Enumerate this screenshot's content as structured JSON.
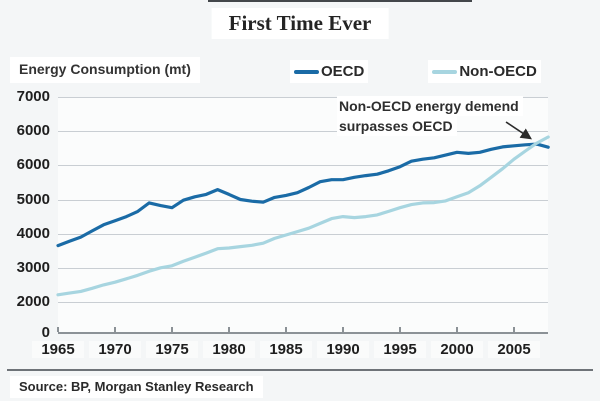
{
  "source": "Source: BP, Morgan Stanley Research",
  "chart_data": {
    "type": "line",
    "title": "First Time Ever",
    "ylabel": "Energy Consumption (mt)",
    "x": [
      1965,
      1966,
      1967,
      1968,
      1969,
      1970,
      1971,
      1972,
      1973,
      1974,
      1975,
      1976,
      1977,
      1978,
      1979,
      1980,
      1981,
      1982,
      1983,
      1984,
      1985,
      1986,
      1987,
      1988,
      1989,
      1990,
      1991,
      1992,
      1993,
      1994,
      1995,
      1996,
      1997,
      1998,
      1999,
      2000,
      2001,
      2002,
      2003,
      2004,
      2005,
      2006,
      2007,
      2008
    ],
    "series": [
      {
        "name": "OECD",
        "color": "#1a6ba6",
        "values": [
          3650,
          3780,
          3900,
          4080,
          4260,
          4380,
          4500,
          4650,
          4900,
          4820,
          4760,
          4980,
          5080,
          5150,
          5290,
          5150,
          5000,
          4950,
          4920,
          5060,
          5120,
          5200,
          5350,
          5520,
          5580,
          5580,
          5650,
          5700,
          5740,
          5840,
          5960,
          6120,
          6180,
          6220,
          6300,
          6380,
          6350,
          6380,
          6470,
          6540,
          6570,
          6600,
          6620,
          6530
        ]
      },
      {
        "name": "Non-OECD",
        "color": "#a7d5e0",
        "values": [
          2210,
          2260,
          2310,
          2400,
          2500,
          2580,
          2680,
          2780,
          2900,
          3000,
          3060,
          3190,
          3310,
          3430,
          3560,
          3580,
          3620,
          3660,
          3720,
          3860,
          3960,
          4060,
          4160,
          4300,
          4440,
          4500,
          4470,
          4500,
          4550,
          4650,
          4760,
          4850,
          4900,
          4910,
          4960,
          5080,
          5200,
          5400,
          5650,
          5900,
          6180,
          6420,
          6650,
          6830
        ]
      }
    ],
    "x_tick_labels": [
      "1965",
      "1970",
      "1975",
      "1980",
      "1985",
      "1990",
      "1995",
      "2000",
      "2005"
    ],
    "y_tick_labels": [
      "7000",
      "6000",
      "6000",
      "5000",
      "4000",
      "3000",
      "2000",
      "0"
    ],
    "annotation_lines": [
      "Non-OECD energy demend",
      "surpasses OECD"
    ],
    "legend_position": "top",
    "grid": "horizontal"
  }
}
